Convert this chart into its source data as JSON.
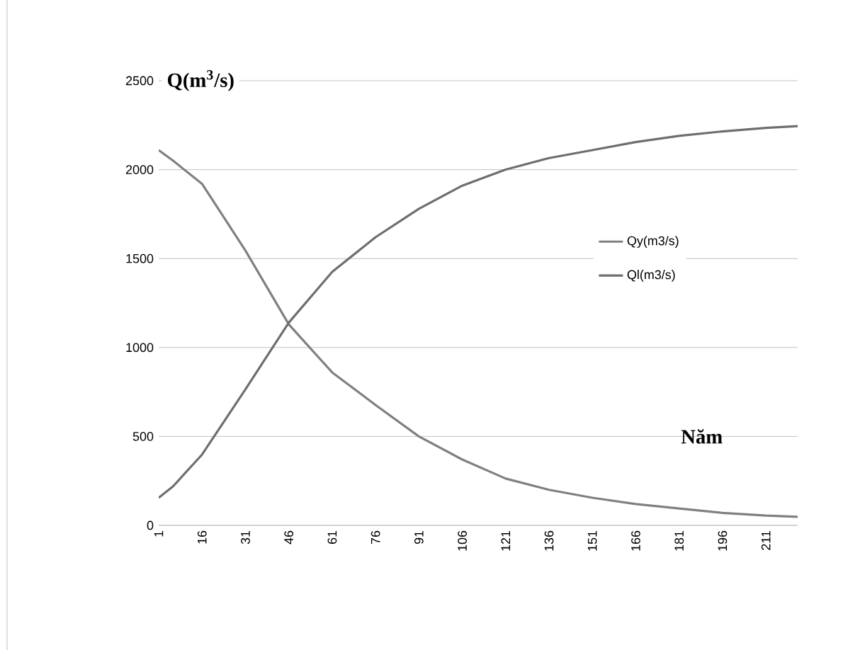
{
  "chart_data": {
    "type": "line",
    "xlabel": "**Năm**",
    "ylabel": "**Q(m$^{3}$/s)**",
    "xlim": [
      1,
      222
    ],
    "xticks": [
      1,
      16,
      31,
      46,
      61,
      76,
      91,
      106,
      121,
      136,
      151,
      166,
      181,
      196,
      211
    ],
    "ylim": [
      0,
      2500
    ],
    "yticks": [
      0,
      500,
      1000,
      1500,
      2000,
      2500
    ],
    "grid": "y",
    "legend": "right",
    "marker": "none",
    "line_style": "solid",
    "series": [
      {
        "name": "Qy(m3/s)",
        "color": "#808080",
        "x": [
          1,
          6,
          16,
          31,
          46,
          61,
          76,
          91,
          106,
          121,
          136,
          151,
          166,
          181,
          196,
          211,
          222
        ],
        "values": [
          2110,
          2050,
          1920,
          1545,
          1130,
          860,
          677,
          500,
          370,
          263,
          200,
          155,
          120,
          95,
          70,
          55,
          48
        ]
      },
      {
        "name": "Ql(m3/s)",
        "color": "#6e6e6e",
        "x": [
          1,
          6,
          16,
          31,
          46,
          61,
          76,
          91,
          106,
          121,
          136,
          151,
          166,
          181,
          196,
          211,
          222
        ],
        "values": [
          155,
          220,
          398,
          765,
          1140,
          1425,
          1620,
          1780,
          1910,
          2000,
          2065,
          2110,
          2155,
          2190,
          2215,
          2235,
          2245
        ]
      }
    ]
  }
}
